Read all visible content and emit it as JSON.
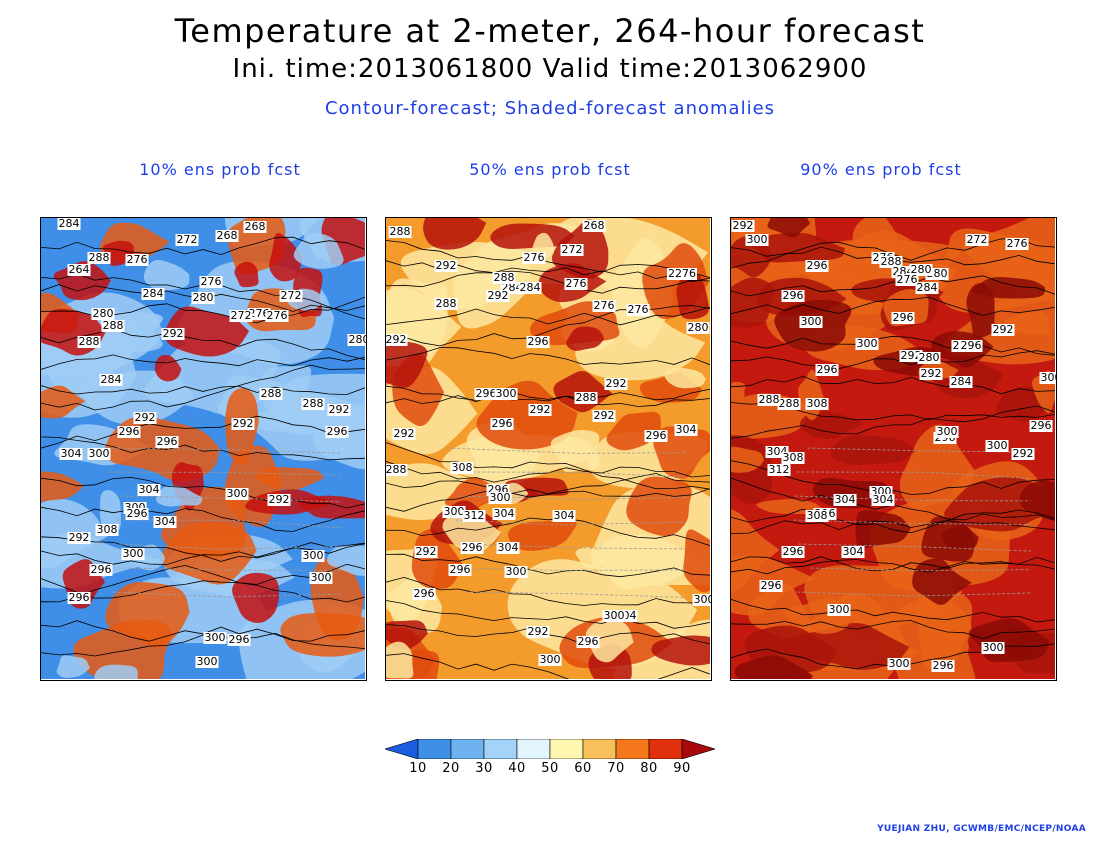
{
  "header": {
    "title": "Temperature at 2-meter, 264-hour forecast",
    "times": "Ini. time:2013061800    Valid time:2013062900",
    "subtitle": "Contour-forecast; Shaded-forecast anomalies"
  },
  "panels": [
    {
      "title": "10% ens prob fcst",
      "fill": {
        "base": "#3f8fe8",
        "mid": "#9fcdf4",
        "hot": "#e85a12",
        "deep": "#c4110e"
      },
      "contour_labels": [
        "284",
        "272",
        "268",
        "268",
        "288",
        "264",
        "276",
        "276",
        "272",
        "284",
        "280",
        "276",
        "272",
        "276",
        "280",
        "288",
        "292",
        "280",
        "288",
        "284",
        "288",
        "292",
        "296",
        "296",
        "292",
        "304",
        "300",
        "292",
        "296",
        "288",
        "292",
        "304",
        "300",
        "296",
        "304",
        "308",
        "292",
        "300",
        "296",
        "300",
        "296",
        "300",
        "300",
        "296",
        "300",
        "300"
      ]
    },
    {
      "title": "50% ens prob fcst",
      "fill": {
        "base": "#f39b2b",
        "mid": "#fde7a0",
        "hot": "#e14b0d",
        "deep": "#b4120c"
      },
      "contour_labels": [
        "288",
        "268",
        "272",
        "292",
        "276",
        "2276",
        "288",
        "276",
        "284",
        "288",
        "292",
        "276",
        "284",
        "296",
        "276",
        "280",
        "292",
        "288",
        "292",
        "296",
        "292",
        "296",
        "300",
        "292",
        "296",
        "304",
        "292",
        "288",
        "308",
        "296",
        "300",
        "300",
        "312",
        "304",
        "304",
        "292",
        "296",
        "304",
        "300",
        "296",
        "296",
        "304",
        "300",
        "292",
        "296",
        "300",
        "300"
      ]
    },
    {
      "title": "90% ens prob fcst",
      "fill": {
        "base": "#c4190f",
        "mid": "#e86418",
        "hot": "#a9140b",
        "deep": "#8b0a06"
      },
      "contour_labels": [
        "292",
        "300",
        "276",
        "272",
        "276",
        "296",
        "288",
        "284",
        "280",
        "280",
        "296",
        "276",
        "284",
        "296",
        "292",
        "296",
        "288",
        "292",
        "300",
        "292",
        "280",
        "296",
        "284",
        "296",
        "300",
        "296",
        "300",
        "288",
        "308",
        "300",
        "296",
        "292",
        "312",
        "304",
        "308",
        "304",
        "300",
        "296",
        "304",
        "308",
        "304",
        "296",
        "296",
        "300",
        "300",
        "300",
        "296",
        "300"
      ]
    }
  ],
  "colorbar": {
    "ticks": [
      "10",
      "20",
      "30",
      "40",
      "50",
      "60",
      "70",
      "80",
      "90"
    ],
    "colors": [
      "#1a5de0",
      "#3f8fe8",
      "#6fb2f0",
      "#a3d3f8",
      "#e2f5ff",
      "#fff6b0",
      "#f8c05a",
      "#f4781b",
      "#e0300e",
      "#a8090a"
    ]
  },
  "credit": "YUEJIAN ZHU, GCWMB/EMC/NCEP/NOAA"
}
